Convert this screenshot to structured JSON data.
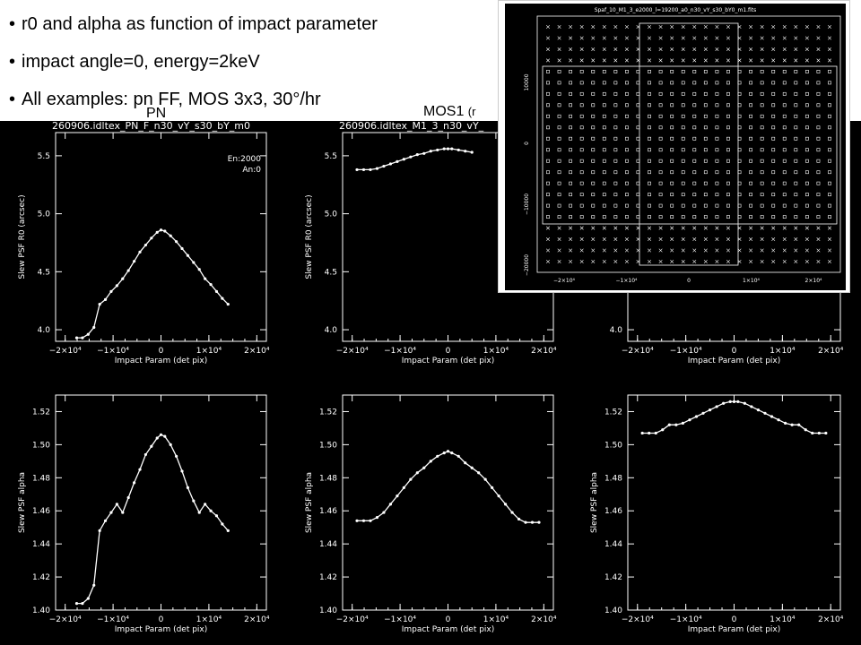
{
  "header": {
    "bullets": [
      "r0 and alpha as function of impact parameter",
      "impact angle=0, energy=2keV",
      "All examples: pn FF, MOS 3x3, 30°/hr"
    ],
    "sub_pn": "PN",
    "sub_mos1": "MOS1",
    "sub_mos1_paren": "(r"
  },
  "panel_titles": [
    "260906.idltex_PN_F_n30_vY_s30_bY_m0",
    "260906.idltex_M1_3_n30_vY_"
  ],
  "annotation": {
    "line1": "En:2000",
    "line2": "An:0"
  },
  "xlabel": "Impact Param (det pix)",
  "ylabel_r0": "Slew PSF R0 (arcsec)",
  "ylabel_alpha": "Slew PSF alpha",
  "inset": {
    "title": "Spaf_10_M1_3_e2000_l=19200_a0_n30_vY_s30_bY0_m1.fits",
    "xticks": [
      "−2×10⁴",
      "−1×10⁴",
      "0",
      "1×10⁴",
      "2×10⁴"
    ],
    "yticks": [
      "10000",
      "0",
      "−10000",
      "−20000"
    ]
  },
  "chart_data": [
    {
      "type": "line",
      "panel": "pn r0",
      "title": "260906.idltex_PN_F_n30_vY_s30_bY_m0",
      "xlabel": "Impact Param (det pix)",
      "ylabel": "Slew PSF R0 (arcsec)",
      "xlim": [
        -22000,
        22000
      ],
      "ylim": [
        3.9,
        5.7
      ],
      "xticks": [
        -20000,
        -10000,
        0,
        10000,
        20000
      ],
      "xtick_labels": [
        "−2×10⁴",
        "−1×10⁴",
        "0",
        "1×10⁴",
        "2×10⁴"
      ],
      "yticks": [
        4.0,
        4.5,
        5.0,
        5.5
      ],
      "ytick_labels": [
        "4.0",
        "4.5",
        "5.0",
        "5.5"
      ],
      "x": [
        -17600,
        -16400,
        -15200,
        -14000,
        -12800,
        -11600,
        -10400,
        -9200,
        -8000,
        -6800,
        -5600,
        -4400,
        -3200,
        -2000,
        -800,
        0,
        800,
        2000,
        3200,
        4400,
        5600,
        6800,
        8000,
        9200,
        10400,
        11600,
        12800,
        14000
      ],
      "y": [
        3.93,
        3.93,
        3.96,
        4.02,
        4.22,
        4.26,
        4.33,
        4.38,
        4.44,
        4.51,
        4.59,
        4.67,
        4.73,
        4.79,
        4.84,
        4.86,
        4.85,
        4.81,
        4.76,
        4.7,
        4.64,
        4.58,
        4.52,
        4.44,
        4.39,
        4.33,
        4.27,
        4.22
      ]
    },
    {
      "type": "line",
      "panel": "mos1 r0",
      "title": "260906.idltex_M1_3_n30_vY_",
      "xlabel": "Impact Param (det pix)",
      "ylabel": "Slew PSF R0 (arcsec)",
      "xlim": [
        -22000,
        22000
      ],
      "ylim": [
        3.9,
        5.7
      ],
      "xticks": [
        -20000,
        -10000,
        0,
        10000,
        20000
      ],
      "xtick_labels": [
        "−2×10⁴",
        "−1×10⁴",
        "0",
        "1×10⁴",
        "2×10⁴"
      ],
      "yticks": [
        4.0,
        4.5,
        5.0,
        5.5
      ],
      "ytick_labels": [
        "4.0",
        "4.5",
        "5.0",
        "5.5"
      ],
      "x": [
        -19000,
        -17600,
        -16200,
        -14800,
        -13400,
        -12000,
        -10600,
        -9200,
        -7800,
        -6400,
        -5000,
        -3600,
        -2200,
        -800,
        0,
        800,
        2200,
        3600,
        5000
      ],
      "y": [
        5.38,
        5.38,
        5.38,
        5.39,
        5.41,
        5.43,
        5.45,
        5.47,
        5.49,
        5.51,
        5.52,
        5.54,
        5.55,
        5.56,
        5.56,
        5.56,
        5.55,
        5.54,
        5.53
      ]
    },
    {
      "type": "line",
      "panel": "mos2 r0",
      "xlim": [
        -22000,
        22000
      ],
      "ylim": [
        3.9,
        5.7
      ],
      "xticks": [
        -20000,
        -10000,
        0,
        10000,
        20000
      ],
      "xtick_labels": [
        "−2×10⁴",
        "−1×10⁴",
        "0",
        "1×10⁴",
        "2×10⁴"
      ],
      "yticks": [
        4.0
      ],
      "ytick_labels": [
        "4.0"
      ],
      "xlabel": "Impact Param (det pix)",
      "x": [],
      "y": []
    },
    {
      "type": "line",
      "panel": "pn alpha",
      "xlabel": "Impact Param (det pix)",
      "ylabel": "Slew PSF alpha",
      "xlim": [
        -22000,
        22000
      ],
      "ylim": [
        1.4,
        1.53
      ],
      "xticks": [
        -20000,
        -10000,
        0,
        10000,
        20000
      ],
      "xtick_labels": [
        "−2×10⁴",
        "−1×10⁴",
        "0",
        "1×10⁴",
        "2×10⁴"
      ],
      "yticks": [
        1.4,
        1.42,
        1.44,
        1.46,
        1.48,
        1.5,
        1.52
      ],
      "ytick_labels": [
        "1.40",
        "1.42",
        "1.44",
        "1.46",
        "1.48",
        "1.50",
        "1.52"
      ],
      "x": [
        -17600,
        -16400,
        -15200,
        -14000,
        -12800,
        -11600,
        -10400,
        -9200,
        -8000,
        -6800,
        -5600,
        -4400,
        -3200,
        -2000,
        -800,
        0,
        800,
        2000,
        3200,
        4400,
        5600,
        6800,
        8000,
        9200,
        10400,
        11600,
        12800,
        14000
      ],
      "y": [
        1.404,
        1.404,
        1.407,
        1.415,
        1.448,
        1.454,
        1.459,
        1.464,
        1.459,
        1.468,
        1.477,
        1.485,
        1.494,
        1.499,
        1.504,
        1.506,
        1.505,
        1.5,
        1.493,
        1.484,
        1.474,
        1.466,
        1.459,
        1.464,
        1.46,
        1.457,
        1.452,
        1.448
      ]
    },
    {
      "type": "line",
      "panel": "mos1 alpha",
      "xlabel": "Impact Param (det pix)",
      "ylabel": "Slew PSF alpha",
      "xlim": [
        -22000,
        22000
      ],
      "ylim": [
        1.4,
        1.53
      ],
      "xticks": [
        -20000,
        -10000,
        0,
        10000,
        20000
      ],
      "xtick_labels": [
        "−2×10⁴",
        "−1×10⁴",
        "0",
        "1×10⁴",
        "2×10⁴"
      ],
      "yticks": [
        1.4,
        1.42,
        1.44,
        1.46,
        1.48,
        1.5,
        1.52
      ],
      "ytick_labels": [
        "1.40",
        "1.42",
        "1.44",
        "1.46",
        "1.48",
        "1.50",
        "1.52"
      ],
      "x": [
        -19000,
        -17600,
        -16200,
        -14800,
        -13400,
        -12000,
        -10600,
        -9200,
        -7800,
        -6400,
        -5000,
        -3600,
        -2200,
        -800,
        0,
        800,
        2200,
        3600,
        5000,
        6400,
        7800,
        9200,
        10600,
        12000,
        13400,
        14800,
        16200,
        17600,
        19000
      ],
      "y": [
        1.454,
        1.454,
        1.454,
        1.456,
        1.459,
        1.464,
        1.469,
        1.474,
        1.479,
        1.483,
        1.486,
        1.49,
        1.493,
        1.495,
        1.496,
        1.495,
        1.493,
        1.489,
        1.486,
        1.483,
        1.479,
        1.474,
        1.469,
        1.464,
        1.459,
        1.455,
        1.453,
        1.453,
        1.453
      ]
    },
    {
      "type": "line",
      "panel": "mos2 alpha",
      "xlabel": "Impact Param (det pix)",
      "ylabel": "Slew PSF alpha",
      "xlim": [
        -22000,
        22000
      ],
      "ylim": [
        1.4,
        1.53
      ],
      "xticks": [
        -20000,
        -10000,
        0,
        10000,
        20000
      ],
      "xtick_labels": [
        "−2×10⁴",
        "−1×10⁴",
        "0",
        "1×10⁴",
        "2×10⁴"
      ],
      "yticks": [
        1.4,
        1.42,
        1.44,
        1.46,
        1.48,
        1.5,
        1.52
      ],
      "ytick_labels": [
        "1.40",
        "1.42",
        "1.44",
        "1.46",
        "1.48",
        "1.50",
        "1.52"
      ],
      "x": [
        -19000,
        -17600,
        -16200,
        -14800,
        -13400,
        -12000,
        -10600,
        -9200,
        -7800,
        -6400,
        -5000,
        -3600,
        -2200,
        -800,
        0,
        800,
        2200,
        3600,
        5000,
        6400,
        7800,
        9200,
        10600,
        12000,
        13400,
        14800,
        16200,
        17600,
        19000
      ],
      "y": [
        1.507,
        1.507,
        1.507,
        1.509,
        1.512,
        1.512,
        1.513,
        1.515,
        1.517,
        1.519,
        1.521,
        1.523,
        1.525,
        1.526,
        1.526,
        1.526,
        1.525,
        1.523,
        1.521,
        1.519,
        1.517,
        1.515,
        1.513,
        1.512,
        1.512,
        1.509,
        1.507,
        1.507,
        1.507
      ]
    }
  ]
}
